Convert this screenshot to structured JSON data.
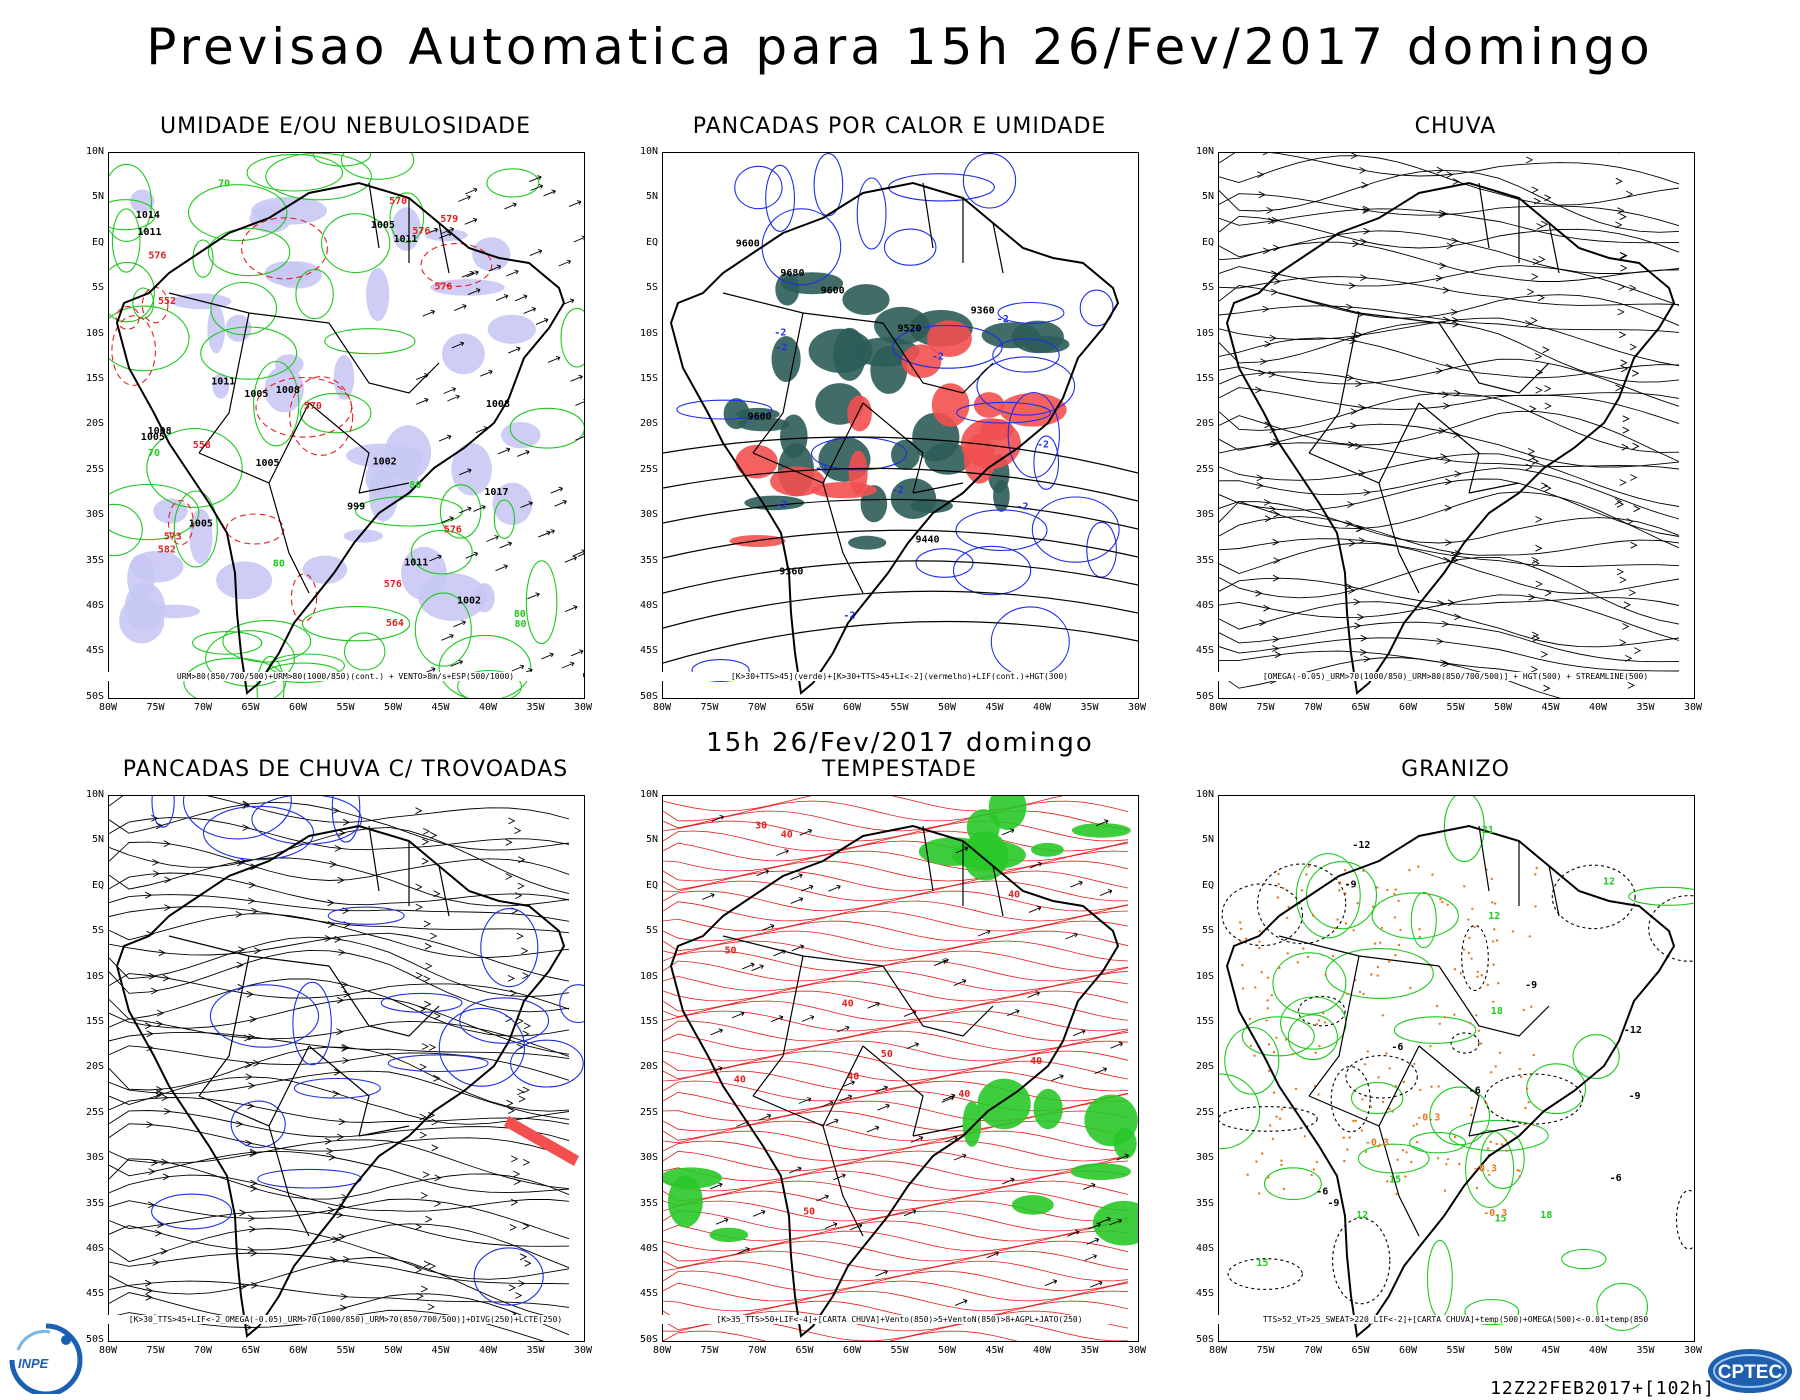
{
  "main_title": "Previsao Automatica  para 15h 26/Fev/2017 domingo",
  "mid_title": "15h 26/Fev/2017 domingo",
  "run_stamp": "12Z22FEB2017+[102h]",
  "lat_labels": [
    "10N",
    "5N",
    "EQ",
    "5S",
    "10S",
    "15S",
    "20S",
    "25S",
    "30S",
    "35S",
    "40S",
    "45S",
    "50S"
  ],
  "lon_labels": [
    "80W",
    "75W",
    "70W",
    "65W",
    "60W",
    "55W",
    "50W",
    "45W",
    "40W",
    "35W",
    "30W"
  ],
  "panels": [
    {
      "id": "umidade",
      "title": "UMIDADE E/OU NEBULOSIDADE",
      "caption": "URM>80(850/700/500)+URM>80(1000/850)(cont.) + VENTO>8m/s+ESP(500/1000)",
      "labels": [
        "1011",
        "1011",
        "1008",
        "1005",
        "1005",
        "1002",
        "1008",
        "1005",
        "1008",
        "1011",
        "1014",
        "1002",
        "1005",
        "1011",
        "1005",
        "999",
        "1017",
        "80",
        "80",
        "80",
        "70",
        "80",
        "70",
        "576",
        "576",
        "576",
        "579",
        "582",
        "576",
        "570",
        "570",
        "576",
        "573",
        "564",
        "558",
        "552"
      ]
    },
    {
      "id": "pancadas_calor",
      "title": "PANCADAS POR CALOR E UMIDADE",
      "caption": "[K>30+TTS>45](verde)+[K>30+TTS>45+LI<-2](vermelho)+LIF(cont.)+HGT(300)",
      "labels": [
        "-2",
        "-2",
        "-2",
        "-2",
        "-2",
        "-2",
        "-2",
        "-2",
        "-2",
        "-2",
        "9680",
        "9600",
        "9600",
        "9600",
        "9520",
        "9440",
        "9360",
        "9360"
      ]
    },
    {
      "id": "chuva",
      "title": "CHUVA",
      "caption": "[OMEGA(-0.05)_URM>70(1000/850)_URM>80(850/700/500)] + HGT(500) + STREAMLINE(500)",
      "labels": []
    },
    {
      "id": "trovoadas",
      "title": "PANCADAS DE CHUVA C/ TROVOADAS",
      "caption": "[K>30_TTS>45+LIF<-2_OMEGA(-0.05)_URM>70(1000/850)_URM>70(850/700/500)]+DIVG(250)+LCTE(250)",
      "labels": []
    },
    {
      "id": "tempestade",
      "title": "TEMPESTADE",
      "caption": "[K>35_TTS>50+LIF<-4]+[CARTA CHUVA]+Vento(850)>5+VentoN(850)>8+AGPL+JATO(250)",
      "labels": [
        "40",
        "40",
        "40",
        "50",
        "40",
        "50",
        "30",
        "40",
        "40",
        "40",
        "50"
      ]
    },
    {
      "id": "granizo",
      "title": "GRANIZO",
      "caption": "TTS>52_VT>25_SWEAT>220_LIF<-2]+[CARTA CHUVA]+temp(500)+OMEGA(500)<-0.01+temp(850",
      "labels": [
        "-6",
        "-6",
        "-6",
        "-6",
        "-9",
        "-9",
        "-9",
        "-9",
        "-12",
        "-12",
        "12",
        "12",
        "12",
        "15",
        "15",
        "15",
        "18",
        "18",
        "21",
        "-0.3",
        "-0.3",
        "-0.3",
        "-0.3"
      ]
    }
  ],
  "logos": {
    "inpe": "INPE",
    "cptec": "CPTEC"
  },
  "colors": {
    "humid_fill": "#c8c8f4",
    "dark_green": "#2e5c58",
    "red_fill": "#f25050",
    "contour_green": "#1ec81e",
    "contour_blue": "#1e2ee6",
    "contour_red": "#e61e1e",
    "contour_orange": "#e6781e",
    "bright_green": "#28c828"
  }
}
